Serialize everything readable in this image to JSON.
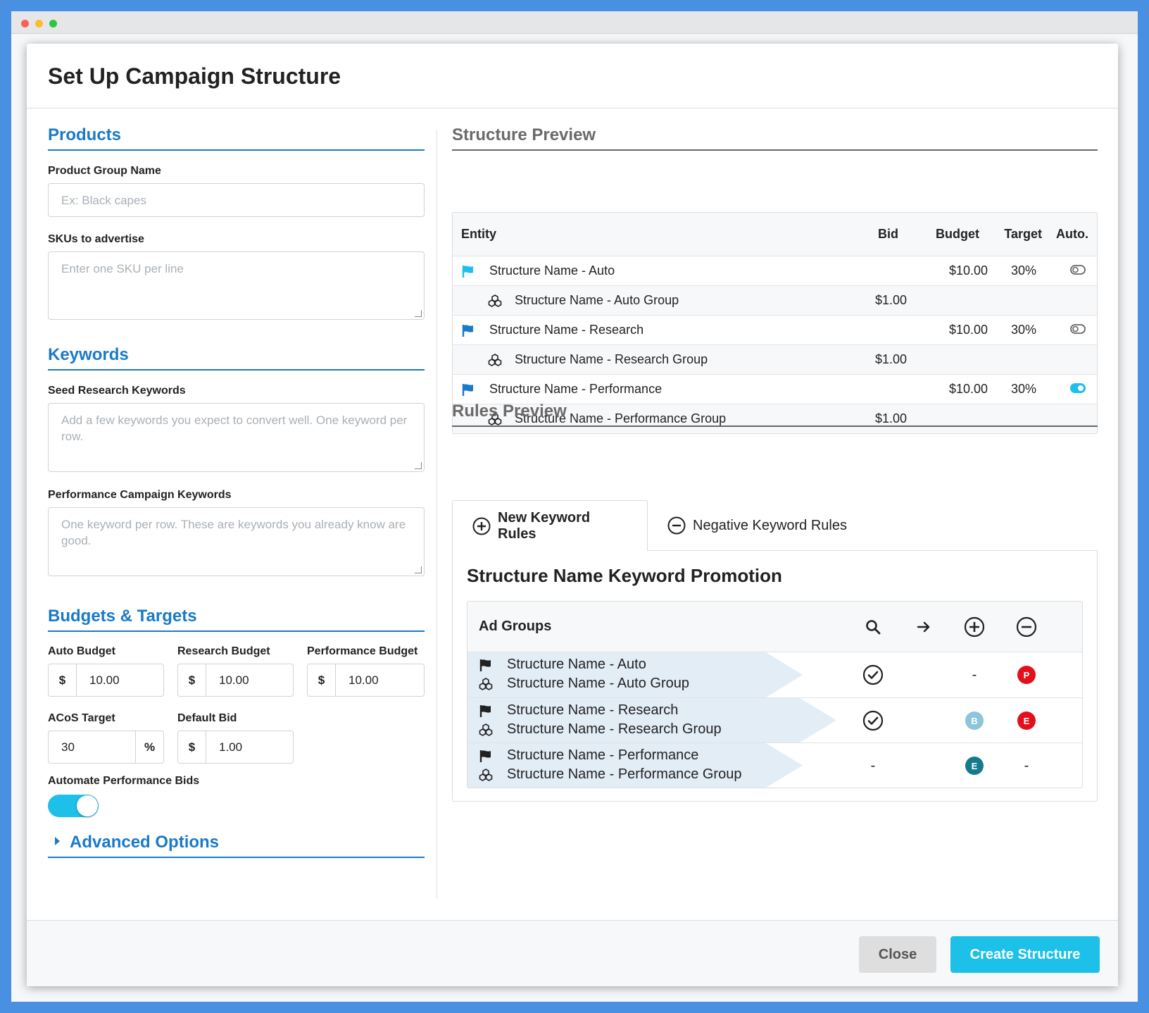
{
  "modal": {
    "title": "Set Up Campaign Structure"
  },
  "left": {
    "products": {
      "heading": "Products",
      "group_name_label": "Product Group Name",
      "group_name_placeholder": "Ex: Black capes",
      "skus_label": "SKUs to advertise",
      "skus_placeholder": "Enter one SKU per line"
    },
    "keywords": {
      "heading": "Keywords",
      "seed_label": "Seed Research Keywords",
      "seed_placeholder": "Add a few keywords you expect to convert well. One keyword per row.",
      "perf_label": "Performance Campaign Keywords",
      "perf_placeholder": "One keyword per row. These are keywords you already know are good."
    },
    "budgets": {
      "heading": "Budgets & Targets",
      "auto_label": "Auto Budget",
      "auto_prefix": "$",
      "auto_value": "10.00",
      "research_label": "Research Budget",
      "research_prefix": "$",
      "research_value": "10.00",
      "perf_label": "Performance Budget",
      "perf_prefix": "$",
      "perf_value": "10.00",
      "acos_label": "ACoS Target",
      "acos_value": "30",
      "acos_suffix": "%",
      "bid_label": "Default Bid",
      "bid_prefix": "$",
      "bid_value": "1.00",
      "automate_label": "Automate Performance Bids",
      "automate_on": true
    },
    "advanced": "Advanced Options"
  },
  "structure": {
    "heading": "Structure Preview",
    "columns": {
      "entity": "Entity",
      "bid": "Bid",
      "budget": "Budget",
      "target": "Target",
      "auto": "Auto."
    },
    "rows": [
      {
        "type": "campaign",
        "name": "Structure Name - Auto",
        "bid": "",
        "budget": "$10.00",
        "target": "30%",
        "auto": "off"
      },
      {
        "type": "group",
        "name": "Structure Name - Auto Group",
        "bid": "$1.00",
        "budget": "",
        "target": "",
        "auto": ""
      },
      {
        "type": "campaign",
        "name": "Structure Name - Research",
        "bid": "",
        "budget": "$10.00",
        "target": "30%",
        "auto": "off"
      },
      {
        "type": "group",
        "name": "Structure Name - Research Group",
        "bid": "$1.00",
        "budget": "",
        "target": "",
        "auto": ""
      },
      {
        "type": "campaign",
        "name": "Structure Name - Performance",
        "bid": "",
        "budget": "$10.00",
        "target": "30%",
        "auto": "on"
      },
      {
        "type": "group",
        "name": "Structure Name - Performance Group",
        "bid": "$1.00",
        "budget": "",
        "target": "",
        "auto": ""
      }
    ]
  },
  "rules": {
    "heading": "Rules Preview",
    "tab_new": "New Keyword Rules",
    "tab_negative": "Negative Keyword Rules",
    "title": "Structure Name Keyword Promotion",
    "ad_groups_header": "Ad Groups",
    "header_icons": [
      "search-icon",
      "arrow-right-icon",
      "plus-circle-icon",
      "minus-circle-icon"
    ],
    "rows": [
      {
        "campaign": "Structure Name - Auto",
        "group": "Structure Name - Auto Group",
        "search": "check",
        "arrow": "",
        "plus": "-",
        "minus": "P"
      },
      {
        "campaign": "Structure Name - Research",
        "group": "Structure Name - Research Group",
        "search": "check",
        "arrow": "",
        "plus": "B",
        "minus": "E"
      },
      {
        "campaign": "Structure Name - Performance",
        "group": "Structure Name - Performance Group",
        "search": "-",
        "arrow": "",
        "plus": "E",
        "minus": "-"
      }
    ]
  },
  "footer": {
    "close": "Close",
    "create": "Create Structure"
  },
  "colors": {
    "accent": "#1a7ac8",
    "cyan": "#1cc0e8",
    "red": "#e3101c",
    "light_blue": "#8ec5d9",
    "teal": "#147a8c"
  }
}
